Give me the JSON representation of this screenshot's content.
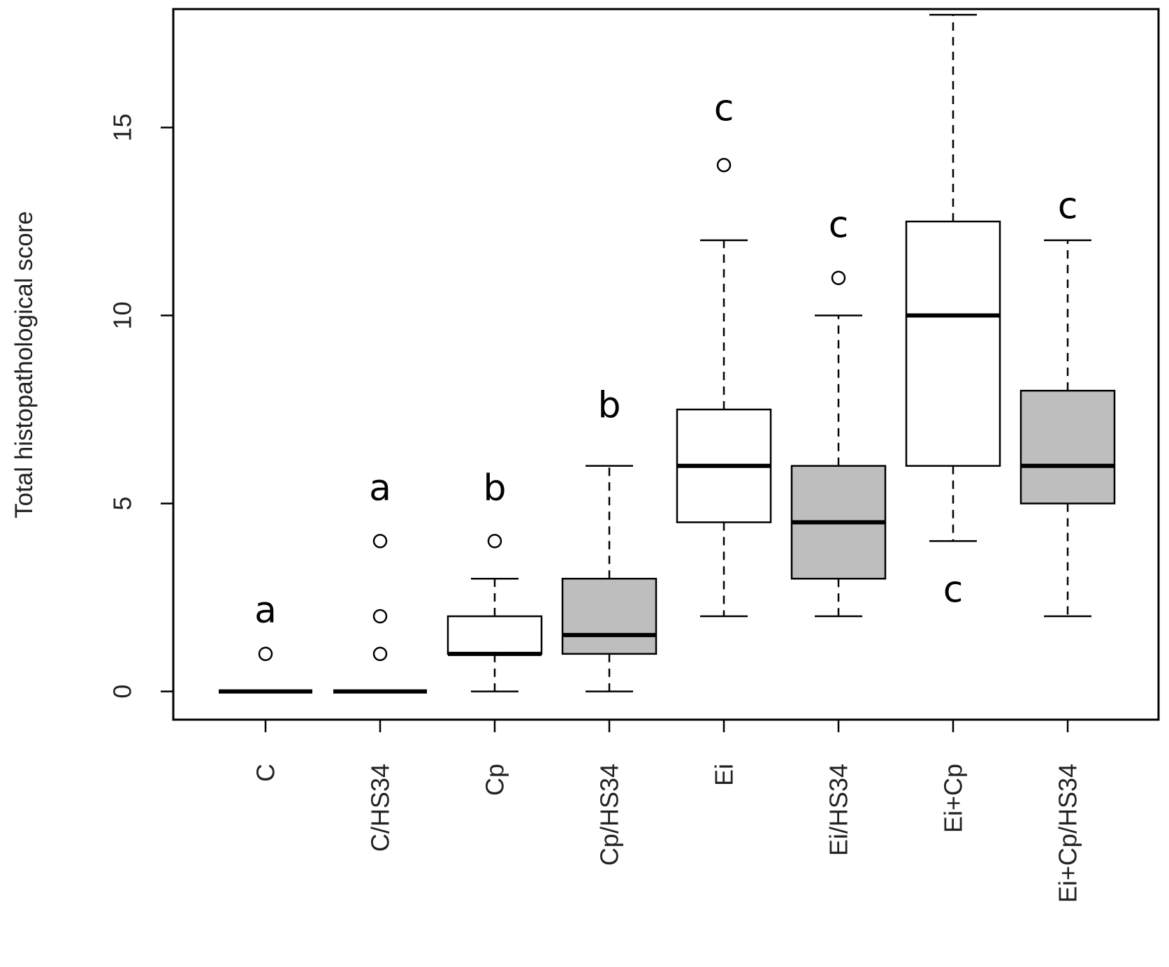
{
  "chart_data": {
    "type": "boxplot",
    "title": "",
    "xlabel": "",
    "ylabel": "Total histopathological score",
    "ylim": [
      -0.75,
      18.15
    ],
    "yticks": [
      0,
      5,
      10,
      15
    ],
    "grid": false,
    "colors": {
      "open": "#ffffff",
      "hs34": "#bebebe",
      "line": "#000000"
    },
    "categories": [
      "C",
      "C/HS34",
      "Cp",
      "Cp/HS34",
      "Ei",
      "Ei/HS34",
      "Ei+Cp",
      "Ei+Cp/HS34"
    ],
    "boxes": [
      {
        "name": "C",
        "whisker_low": 0,
        "q1": 0,
        "median": 0,
        "q3": 0,
        "whisker_high": 0,
        "outliers": [
          1
        ],
        "fill": "open",
        "letter": "a",
        "letter_y": 2.15,
        "letter_pos": "above"
      },
      {
        "name": "C/HS34",
        "whisker_low": 0,
        "q1": 0,
        "median": 0,
        "q3": 0,
        "whisker_high": 0,
        "outliers": [
          1,
          2,
          4
        ],
        "fill": "hs34",
        "letter": "a",
        "letter_y": 5.4,
        "letter_pos": "above"
      },
      {
        "name": "Cp",
        "whisker_low": 0,
        "q1": 1,
        "median": 1,
        "q3": 2,
        "whisker_high": 3,
        "outliers": [
          4
        ],
        "fill": "open",
        "letter": "b",
        "letter_y": 5.4,
        "letter_pos": "above"
      },
      {
        "name": "Cp/HS34",
        "whisker_low": 0,
        "q1": 1,
        "median": 1.5,
        "q3": 3,
        "whisker_high": 6,
        "outliers": [],
        "fill": "hs34",
        "letter": "b",
        "letter_y": 7.6,
        "letter_pos": "above"
      },
      {
        "name": "Ei",
        "whisker_low": 2,
        "q1": 4.5,
        "median": 6,
        "q3": 7.5,
        "whisker_high": 12,
        "outliers": [
          14
        ],
        "fill": "open",
        "letter": "c",
        "letter_y": 15.5,
        "letter_pos": "above"
      },
      {
        "name": "Ei/HS34",
        "whisker_low": 2,
        "q1": 3,
        "median": 4.5,
        "q3": 6,
        "whisker_high": 10,
        "outliers": [
          11
        ],
        "fill": "hs34",
        "letter": "c",
        "letter_y": 12.4,
        "letter_pos": "above"
      },
      {
        "name": "Ei+Cp",
        "whisker_low": 4,
        "q1": 6,
        "median": 10,
        "q3": 12.5,
        "whisker_high": 18,
        "outliers": [],
        "fill": "open",
        "letter": "c",
        "letter_y": 2.7,
        "letter_pos": "below"
      },
      {
        "name": "Ei+Cp/HS34",
        "whisker_low": 2,
        "q1": 5,
        "median": 6,
        "q3": 8,
        "whisker_high": 12,
        "outliers": [],
        "fill": "hs34",
        "letter": "c",
        "letter_y": 12.9,
        "letter_pos": "above"
      }
    ]
  }
}
